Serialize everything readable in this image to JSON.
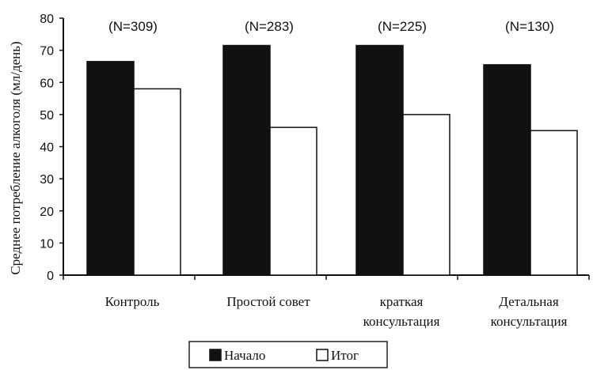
{
  "chart_data": {
    "type": "bar",
    "ylabel": "Среднее потребление алкоголя (мл/день)",
    "ylim": [
      0,
      80
    ],
    "yticks": [
      "0",
      "10",
      "20",
      "30",
      "40",
      "50",
      "60",
      "70",
      "80"
    ],
    "categories": [
      [
        "Контроль"
      ],
      [
        "Простой совет"
      ],
      [
        "краткая",
        "консультация"
      ],
      [
        "Детальная",
        "консультация"
      ]
    ],
    "annotations": [
      "(N=309)",
      "(N=283)",
      "(N=225)",
      "(N=130)"
    ],
    "series": [
      {
        "name": "Начало",
        "values": [
          66.5,
          71.5,
          71.5,
          65.5
        ],
        "color": "#111111"
      },
      {
        "name": "Итог",
        "values": [
          58,
          46,
          50,
          45
        ],
        "color": "#ffffff"
      }
    ],
    "legend_position": "bottom-center",
    "grid": false
  }
}
